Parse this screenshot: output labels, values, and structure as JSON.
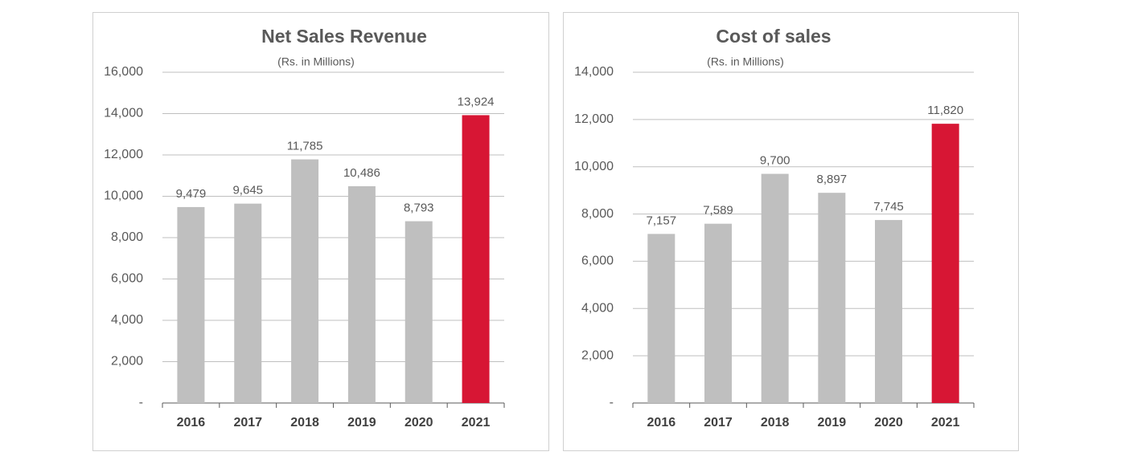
{
  "chart_data": [
    {
      "type": "bar",
      "title": "Net Sales Revenue",
      "subtitle": "(Rs. in Millions)",
      "categories": [
        "2016",
        "2017",
        "2018",
        "2019",
        "2020",
        "2021"
      ],
      "values": [
        9479,
        9645,
        11785,
        10486,
        8793,
        13924
      ],
      "value_labels": [
        "9,479",
        "9,645",
        "11,785",
        "10,486",
        "8,793",
        "13,924"
      ],
      "colors": [
        "#bfbfbf",
        "#bfbfbf",
        "#bfbfbf",
        "#bfbfbf",
        "#bfbfbf",
        "#d71634"
      ],
      "ylim": [
        0,
        16000
      ],
      "yticks": [
        {
          "value": 0,
          "label": "-"
        },
        {
          "value": 2000,
          "label": "2,000"
        },
        {
          "value": 4000,
          "label": "4,000"
        },
        {
          "value": 6000,
          "label": "6,000"
        },
        {
          "value": 8000,
          "label": "8,000"
        },
        {
          "value": 10000,
          "label": "10,000"
        },
        {
          "value": 12000,
          "label": "12,000"
        },
        {
          "value": 14000,
          "label": "14,000"
        },
        {
          "value": 16000,
          "label": "16,000"
        }
      ],
      "grid": true
    },
    {
      "type": "bar",
      "title": "Cost of sales",
      "subtitle": "(Rs. in Millions)",
      "categories": [
        "2016",
        "2017",
        "2018",
        "2019",
        "2020",
        "2021"
      ],
      "values": [
        7157,
        7589,
        9700,
        8897,
        7745,
        11820
      ],
      "value_labels": [
        "7,157",
        "7,589",
        "9,700",
        "8,897",
        "7,745",
        "11,820"
      ],
      "colors": [
        "#bfbfbf",
        "#bfbfbf",
        "#bfbfbf",
        "#bfbfbf",
        "#bfbfbf",
        "#d71634"
      ],
      "ylim": [
        0,
        14000
      ],
      "yticks": [
        {
          "value": 0,
          "label": "-"
        },
        {
          "value": 2000,
          "label": "2,000"
        },
        {
          "value": 4000,
          "label": "4,000"
        },
        {
          "value": 6000,
          "label": "6,000"
        },
        {
          "value": 8000,
          "label": "8,000"
        },
        {
          "value": 10000,
          "label": "10,000"
        },
        {
          "value": 12000,
          "label": "12,000"
        },
        {
          "value": 14000,
          "label": "14,000"
        }
      ],
      "grid": true
    }
  ]
}
